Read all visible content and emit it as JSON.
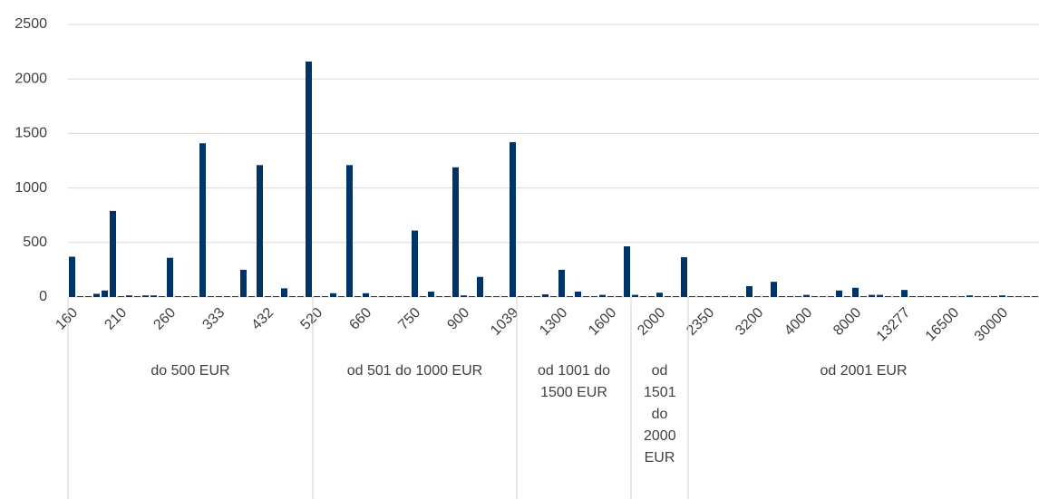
{
  "chart_data": {
    "type": "bar",
    "categories": [
      "160",
      null,
      null,
      null,
      null,
      null,
      "210",
      null,
      null,
      null,
      null,
      null,
      "260",
      null,
      null,
      null,
      null,
      null,
      "333",
      null,
      null,
      null,
      null,
      null,
      "432",
      null,
      null,
      null,
      null,
      null,
      "520",
      null,
      null,
      null,
      null,
      null,
      "660",
      null,
      null,
      null,
      null,
      null,
      "750",
      null,
      null,
      null,
      null,
      null,
      "900",
      null,
      null,
      null,
      null,
      null,
      "1039",
      null,
      null,
      null,
      null,
      null,
      "1300",
      null,
      null,
      null,
      null,
      null,
      "1600",
      null,
      null,
      null,
      null,
      null,
      "2000",
      null,
      null,
      null,
      null,
      null,
      "2350",
      null,
      null,
      null,
      null,
      null,
      "3200",
      null,
      null,
      null,
      null,
      null,
      "4000",
      null,
      null,
      null,
      null,
      null,
      "8000",
      null,
      null,
      null,
      null,
      null,
      "13277",
      null,
      null,
      null,
      null,
      null,
      "16500",
      null,
      null,
      null,
      null,
      null,
      "30000",
      null,
      null,
      null,
      null
    ],
    "values": [
      370,
      8,
      8,
      30,
      60,
      790,
      8,
      15,
      8,
      15,
      15,
      8,
      360,
      8,
      8,
      8,
      1410,
      8,
      8,
      8,
      8,
      250,
      8,
      1210,
      8,
      8,
      80,
      8,
      8,
      2160,
      8,
      8,
      35,
      8,
      1210,
      8,
      35,
      8,
      8,
      8,
      8,
      8,
      610,
      8,
      50,
      8,
      8,
      1190,
      15,
      8,
      185,
      8,
      8,
      8,
      1420,
      8,
      8,
      8,
      25,
      8,
      250,
      8,
      50,
      8,
      8,
      20,
      8,
      8,
      465,
      20,
      8,
      8,
      40,
      8,
      8,
      365,
      8,
      8,
      8,
      8,
      8,
      8,
      8,
      100,
      8,
      8,
      140,
      8,
      8,
      8,
      20,
      8,
      8,
      8,
      60,
      8,
      85,
      8,
      20,
      20,
      8,
      8,
      65,
      8,
      8,
      8,
      8,
      8,
      8,
      8,
      15,
      8,
      8,
      8,
      15,
      8,
      8,
      8,
      8
    ],
    "color": "#003467",
    "ylim": [
      0,
      2500
    ],
    "yticks": [
      0,
      500,
      1000,
      1500,
      2000,
      2500
    ],
    "grid": true,
    "groups": [
      "do 500 EUR",
      "od 501 do 1000 EUR",
      "od 1001 do 1500 EUR",
      "od 1501 do 2000 EUR",
      "od 2001 EUR"
    ]
  }
}
